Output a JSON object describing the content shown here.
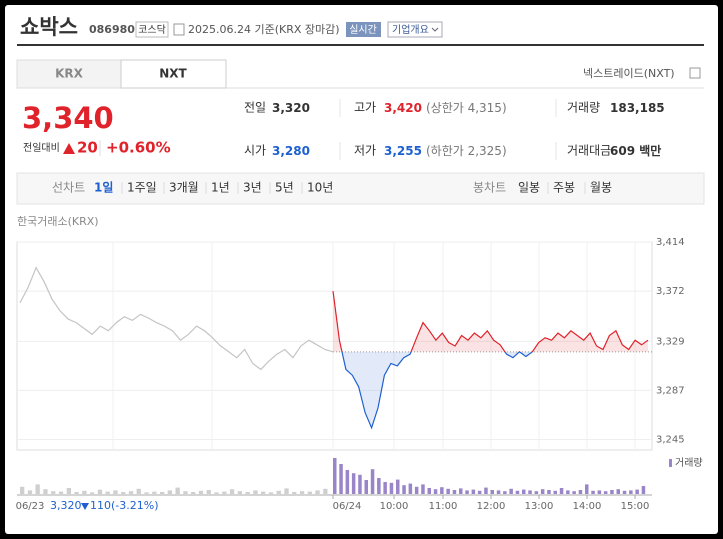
{
  "header": {
    "name": "쇼박스",
    "code": "086980",
    "market": "코스닥",
    "date": "2025.06.24 기준(KRX 장마감)",
    "realtime": "실시간",
    "company_info": "기업개요"
  },
  "tabs": [
    "KRX",
    "NXT"
  ],
  "nxt_link": "넥스트레이드(NXT)",
  "quote": {
    "price": "3,340",
    "change_label": "전일대비",
    "change": "20",
    "change_pct": "+0.60%"
  },
  "stats": [
    {
      "label": "전일",
      "value": "3,320"
    },
    {
      "label": "고가",
      "value": "3,420",
      "sub": "(상한가 4,315)"
    },
    {
      "label": "거래량",
      "value": "183,185"
    },
    {
      "label": "시가",
      "value": "3,280"
    },
    {
      "label": "저가",
      "value": "3,255",
      "sub": "(하한가 2,325)"
    },
    {
      "label": "거래대금",
      "value": "609 백만"
    }
  ],
  "periods": {
    "label": "선차트",
    "items": [
      "1일",
      "1주일",
      "3개월",
      "1년",
      "3년",
      "5년",
      "10년"
    ]
  },
  "candles": {
    "label": "봉차트",
    "items": [
      "일봉",
      "주봉",
      "월봉"
    ]
  },
  "chart_data": {
    "type": "line",
    "source": "한국거래소(KRX)",
    "ylim": [
      3236,
      3414
    ],
    "yticks": [
      {
        "value": 3414,
        "label": "3,414"
      },
      {
        "value": 3372,
        "label": "3,372"
      },
      {
        "value": 3329,
        "label": "3,329"
      },
      {
        "value": 3287,
        "label": "3,287"
      },
      {
        "value": 3245,
        "label": "3,245"
      }
    ],
    "baseline": 3320,
    "xticks": [
      "06/23",
      "06/24",
      "10:00",
      "11:00",
      "12:00",
      "13:00",
      "14:00",
      "15:00"
    ],
    "grid": true,
    "series": [
      {
        "color": "#c4c4c4",
        "values": [
          3362,
          3375,
          3392,
          3380,
          3365,
          3355,
          3348,
          3345,
          3340,
          3335,
          3342,
          3338,
          3345,
          3350,
          3347,
          3352,
          3349,
          3345,
          3342,
          3338,
          3330,
          3335,
          3342,
          3338,
          3332,
          3325,
          3320,
          3315,
          3322,
          3310,
          3305,
          3312,
          3318,
          3322,
          3315,
          3325,
          3330,
          3326,
          3322,
          3320
        ]
      },
      {
        "color": "#e0222a",
        "down_color": "#1e60d0",
        "values": [
          3372,
          3330,
          3305,
          3300,
          3290,
          3268,
          3255,
          3272,
          3300,
          3310,
          3308,
          3315,
          3318,
          3332,
          3345,
          3338,
          3330,
          3336,
          3328,
          3325,
          3334,
          3330,
          3336,
          3332,
          3338,
          3330,
          3326,
          3318,
          3315,
          3320,
          3316,
          3320,
          3328,
          3332,
          3330,
          3336,
          3332,
          3338,
          3334,
          3330,
          3336,
          3325,
          3322,
          3334,
          3338,
          3326,
          3322,
          3330,
          3326,
          3330
        ]
      }
    ],
    "volume": {
      "name": "거래량",
      "color": "#9a85c8",
      "prev_color": "#cfcfcf",
      "prev_values": [
        1800,
        900,
        2400,
        1200,
        700,
        600,
        1500,
        500,
        800,
        400,
        1100,
        600,
        900,
        500,
        700,
        1300,
        400,
        600,
        500,
        900,
        1600,
        700,
        500,
        800,
        1000,
        400,
        600,
        1200,
        700,
        500,
        900,
        600,
        400,
        800,
        1400,
        500,
        700,
        600,
        900,
        1300
      ],
      "values": [
        9000,
        7500,
        6000,
        5200,
        4800,
        3500,
        6200,
        4000,
        3000,
        2800,
        3600,
        2200,
        2600,
        1800,
        2400,
        1500,
        1200,
        1700,
        1300,
        1000,
        1400,
        900,
        1100,
        800,
        1600,
        1000,
        900,
        700,
        1300,
        800,
        1100,
        900,
        700,
        1200,
        1000,
        800,
        1500,
        900,
        700,
        1000,
        2400,
        800,
        900,
        700,
        1000,
        1200,
        800,
        900,
        1100,
        2000
      ]
    },
    "footer": {
      "close": "3,320",
      "change": "110",
      "change_pct": "(-3.21%)"
    }
  }
}
